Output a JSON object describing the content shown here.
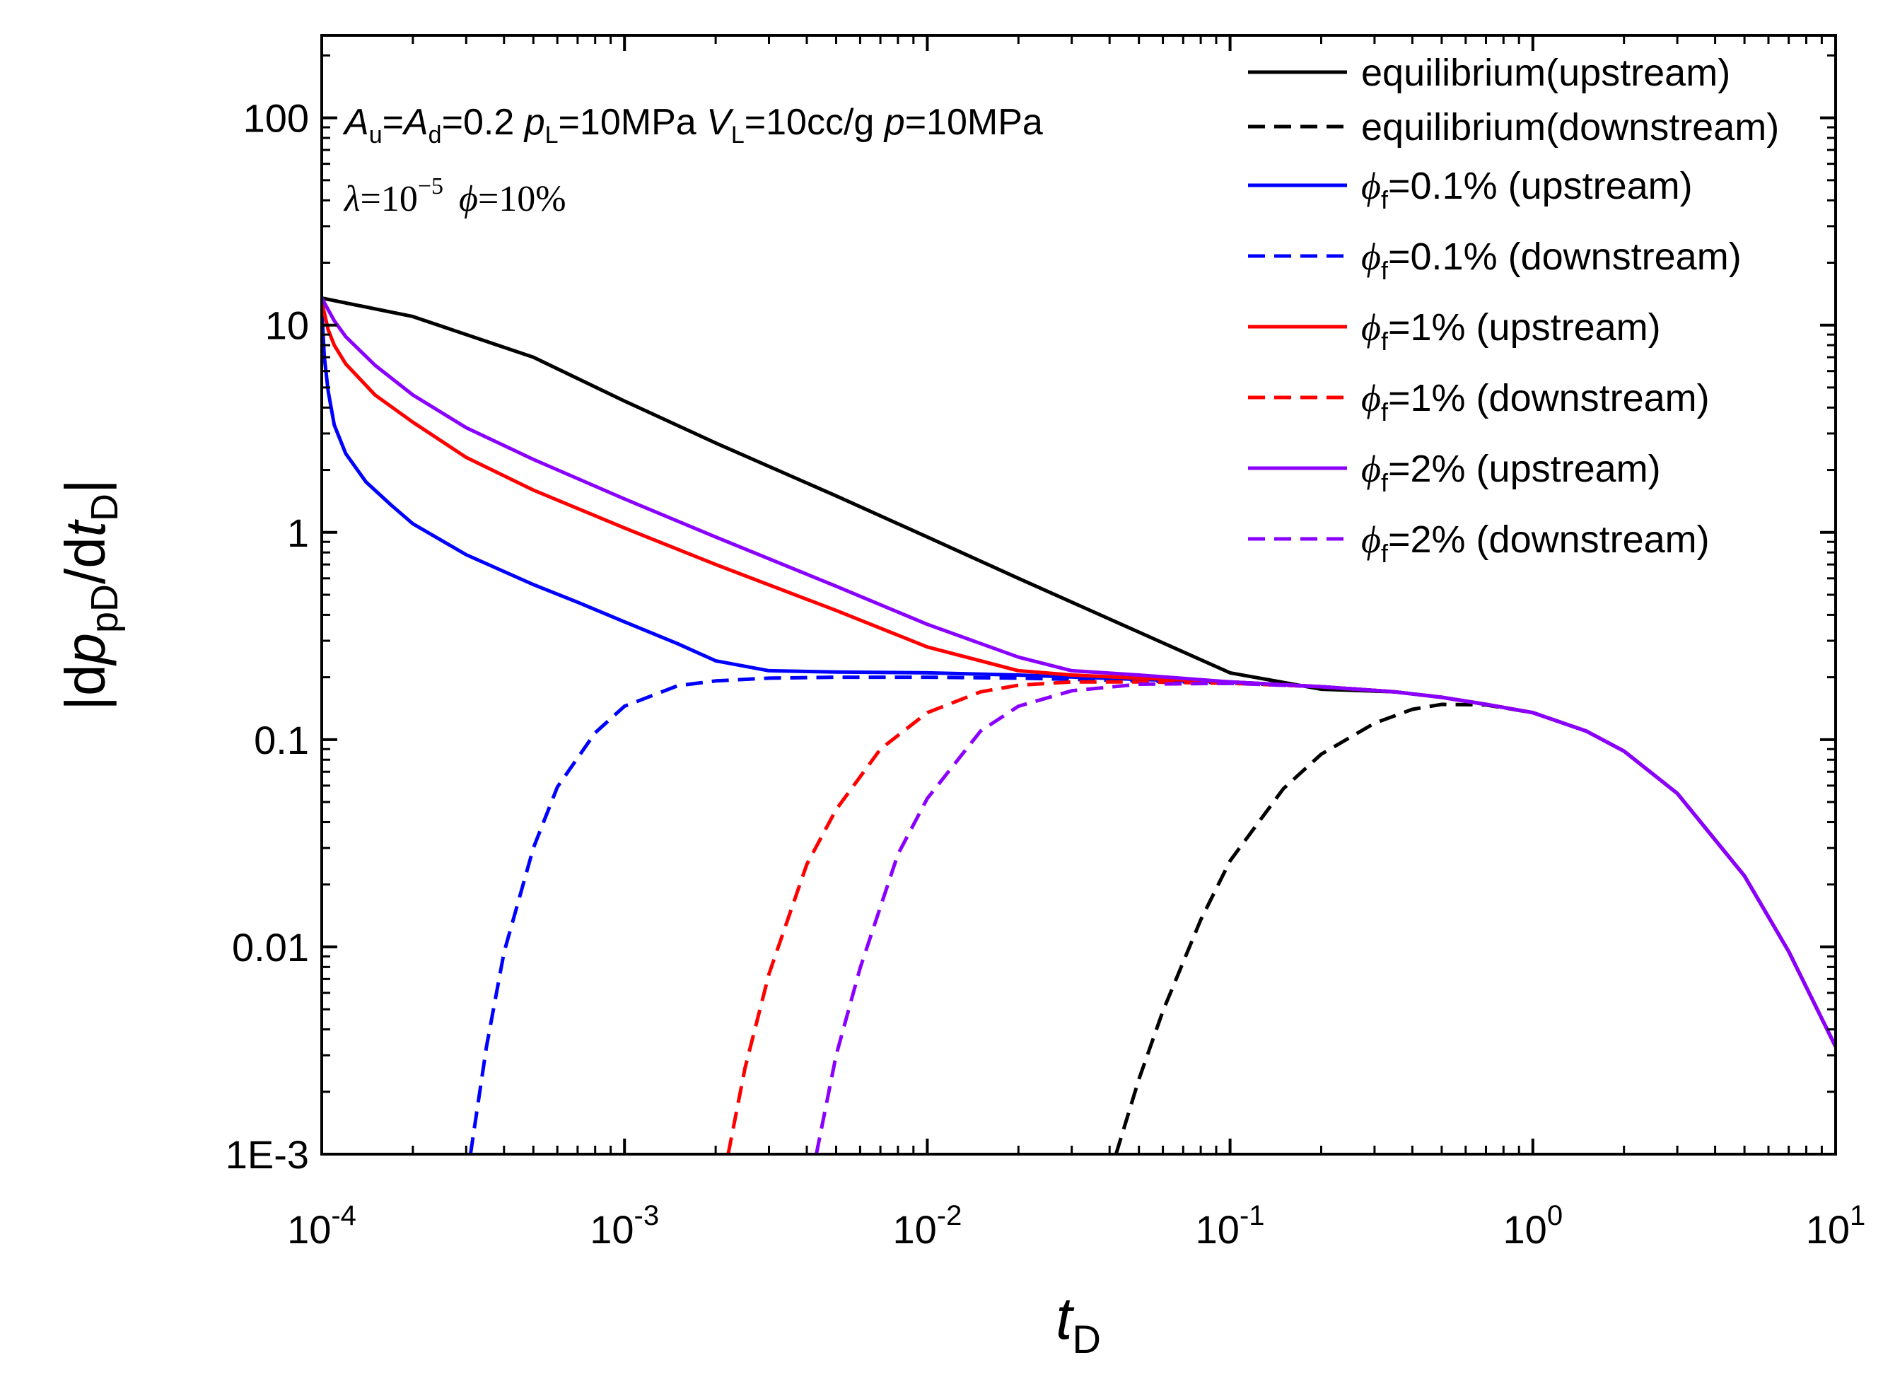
{
  "chart_data": {
    "type": "line",
    "x_scale": "log",
    "y_scale": "log",
    "xlim": [
      0.0001,
      10
    ],
    "ylim": [
      0.001,
      250
    ],
    "x_ticks": [
      {
        "value": 0.0001,
        "base": "10",
        "exp": "-4"
      },
      {
        "value": 0.001,
        "base": "10",
        "exp": "-3"
      },
      {
        "value": 0.01,
        "base": "10",
        "exp": "-2"
      },
      {
        "value": 0.1,
        "base": "10",
        "exp": "-1"
      },
      {
        "value": 1,
        "base": "10",
        "exp": "0"
      },
      {
        "value": 10,
        "base": "10",
        "exp": "1"
      }
    ],
    "y_ticks": [
      {
        "value": 0.001,
        "label": "1E-3"
      },
      {
        "value": 0.01,
        "label": "0.01"
      },
      {
        "value": 0.1,
        "label": "0.1"
      },
      {
        "value": 1,
        "label": "1"
      },
      {
        "value": 10,
        "label": "10"
      },
      {
        "value": 100,
        "label": "100"
      }
    ],
    "xlabel": {
      "main": "t",
      "sub": "D"
    },
    "ylabel": {
      "p1": "|d",
      "p": "p",
      "sub1": "pD",
      "p2": "/d",
      "t": "t",
      "sub2": "D",
      "p3": "|"
    },
    "annotation": {
      "A": "A",
      "u": "u",
      "eq1": "=",
      "A2": "A",
      "d": "d",
      "val1": "=0.2 ",
      "p": "p",
      "L1": "L",
      "val2": "=10MPa ",
      "V": "V",
      "L2": "L",
      "val3": "=10cc/g ",
      "p2": "p",
      "val4": "=10MPa",
      "lambda": "λ",
      "eq_lambda": "=10",
      "lambda_exp": "−5",
      "phi": "ϕ",
      "phi_val": "=10%"
    },
    "legend_position": "top-right",
    "series": [
      {
        "name": "equilibrium(upstream)",
        "label_plain": "equilibrium(upstream)",
        "color": "#000000",
        "dash": "solid",
        "x": [
          0.0001,
          0.0002,
          0.0005,
          0.001,
          0.002,
          0.005,
          0.01,
          0.02,
          0.05,
          0.1,
          0.2,
          0.35,
          0.5,
          0.7,
          1.0,
          1.5,
          2.0,
          3.0,
          5.0,
          7.0,
          10.0
        ],
        "values": [
          13.5,
          11.0,
          7.0,
          4.3,
          2.7,
          1.5,
          0.95,
          0.6,
          0.33,
          0.21,
          0.175,
          0.17,
          0.16,
          0.148,
          0.135,
          0.11,
          0.088,
          0.055,
          0.022,
          0.0095,
          0.0033
        ]
      },
      {
        "name": "equilibrium(downstream)",
        "label_plain": "equilibrium(downstream)",
        "color": "#000000",
        "dash": "dashed",
        "x": [
          0.042,
          0.05,
          0.06,
          0.08,
          0.1,
          0.15,
          0.2,
          0.3,
          0.4,
          0.5,
          0.7,
          1.0,
          1.5,
          2.0,
          3.0,
          5.0,
          7.0,
          10.0
        ],
        "values": [
          0.001,
          0.0023,
          0.0049,
          0.0135,
          0.026,
          0.058,
          0.085,
          0.12,
          0.14,
          0.148,
          0.147,
          0.135,
          0.11,
          0.088,
          0.055,
          0.022,
          0.0095,
          0.0033
        ]
      },
      {
        "name": "ϕf=0.1% (upstream)",
        "phi_sub": "f",
        "rest": "=0.1% (upstream)",
        "color": "#0000ff",
        "dash": "solid",
        "x": [
          0.0001,
          0.000102,
          0.000105,
          0.00011,
          0.00012,
          0.00014,
          0.00017,
          0.0002,
          0.0003,
          0.0005,
          0.0007,
          0.001,
          0.0015,
          0.002,
          0.003,
          0.005,
          0.01,
          0.02,
          0.05,
          0.1,
          0.2,
          0.35,
          0.5,
          0.7,
          1.0,
          1.5,
          2.0,
          3.0,
          5.0,
          7.0,
          10.0
        ],
        "values": [
          12.0,
          7.0,
          4.8,
          3.3,
          2.4,
          1.75,
          1.35,
          1.1,
          0.78,
          0.56,
          0.46,
          0.37,
          0.29,
          0.24,
          0.215,
          0.212,
          0.21,
          0.205,
          0.195,
          0.19,
          0.18,
          0.17,
          0.16,
          0.148,
          0.135,
          0.11,
          0.088,
          0.055,
          0.022,
          0.0095,
          0.0033
        ]
      },
      {
        "name": "ϕf=0.1% (downstream)",
        "phi_sub": "f",
        "rest": "=0.1% (downstream)",
        "color": "#0000ff",
        "dash": "dashed",
        "x": [
          0.00031,
          0.00035,
          0.0004,
          0.0005,
          0.0006,
          0.0008,
          0.001,
          0.0015,
          0.002,
          0.003,
          0.005,
          0.01,
          0.02,
          0.05,
          0.1,
          0.2,
          0.35,
          0.5,
          0.7,
          1.0,
          1.5,
          2.0,
          3.0,
          5.0,
          7.0,
          10.0
        ],
        "values": [
          0.001,
          0.0033,
          0.0094,
          0.03,
          0.059,
          0.108,
          0.145,
          0.182,
          0.192,
          0.198,
          0.2,
          0.2,
          0.198,
          0.192,
          0.188,
          0.18,
          0.17,
          0.16,
          0.148,
          0.135,
          0.11,
          0.088,
          0.055,
          0.022,
          0.0095,
          0.0033
        ]
      },
      {
        "name": "ϕf=1% (upstream)",
        "phi_sub": "f",
        "rest": "=1% (upstream)",
        "color": "#ff0000",
        "dash": "solid",
        "x": [
          0.0001,
          0.000105,
          0.00011,
          0.00012,
          0.00015,
          0.0002,
          0.0003,
          0.0005,
          0.001,
          0.002,
          0.005,
          0.01,
          0.02,
          0.03,
          0.05,
          0.1,
          0.2,
          0.35,
          0.5,
          0.7,
          1.0,
          1.5,
          2.0,
          3.0,
          5.0,
          7.0,
          10.0
        ],
        "values": [
          13.0,
          9.5,
          8.0,
          6.5,
          4.6,
          3.4,
          2.3,
          1.6,
          1.05,
          0.7,
          0.42,
          0.28,
          0.215,
          0.205,
          0.198,
          0.19,
          0.18,
          0.17,
          0.16,
          0.148,
          0.135,
          0.11,
          0.088,
          0.055,
          0.022,
          0.0095,
          0.0033
        ]
      },
      {
        "name": "ϕf=1% (downstream)",
        "phi_sub": "f",
        "rest": "=1% (downstream)",
        "color": "#ff0000",
        "dash": "dashed",
        "x": [
          0.0022,
          0.0025,
          0.003,
          0.004,
          0.005,
          0.007,
          0.01,
          0.015,
          0.02,
          0.03,
          0.05,
          0.1,
          0.2,
          0.35,
          0.5,
          0.7,
          1.0,
          1.5,
          2.0,
          3.0,
          5.0,
          7.0,
          10.0
        ],
        "values": [
          0.001,
          0.0026,
          0.0074,
          0.025,
          0.046,
          0.09,
          0.135,
          0.17,
          0.183,
          0.19,
          0.19,
          0.187,
          0.18,
          0.17,
          0.16,
          0.148,
          0.135,
          0.11,
          0.088,
          0.055,
          0.022,
          0.0095,
          0.0033
        ]
      },
      {
        "name": "ϕf=2% (upstream)",
        "phi_sub": "f",
        "rest": "=2% (upstream)",
        "color": "#8a00ff",
        "dash": "solid",
        "x": [
          0.0001,
          0.00011,
          0.00012,
          0.00015,
          0.0002,
          0.0003,
          0.0005,
          0.001,
          0.002,
          0.005,
          0.01,
          0.02,
          0.03,
          0.05,
          0.1,
          0.2,
          0.35,
          0.5,
          0.7,
          1.0,
          1.5,
          2.0,
          3.0,
          5.0,
          7.0,
          10.0
        ],
        "values": [
          13.5,
          10.5,
          8.8,
          6.4,
          4.6,
          3.2,
          2.25,
          1.45,
          0.95,
          0.55,
          0.36,
          0.25,
          0.215,
          0.205,
          0.19,
          0.18,
          0.17,
          0.16,
          0.148,
          0.135,
          0.11,
          0.088,
          0.055,
          0.022,
          0.0095,
          0.0033
        ]
      },
      {
        "name": "ϕf=2% (downstream)",
        "phi_sub": "f",
        "rest": "=2% (downstream)",
        "color": "#8a00ff",
        "dash": "dashed",
        "x": [
          0.0043,
          0.005,
          0.006,
          0.008,
          0.01,
          0.015,
          0.02,
          0.03,
          0.05,
          0.1,
          0.2,
          0.35,
          0.5,
          0.7,
          1.0,
          1.5,
          2.0,
          3.0,
          5.0,
          7.0,
          10.0
        ],
        "values": [
          0.001,
          0.003,
          0.0079,
          0.028,
          0.052,
          0.11,
          0.145,
          0.172,
          0.185,
          0.187,
          0.18,
          0.17,
          0.16,
          0.148,
          0.135,
          0.11,
          0.088,
          0.055,
          0.022,
          0.0095,
          0.0033
        ]
      }
    ]
  }
}
